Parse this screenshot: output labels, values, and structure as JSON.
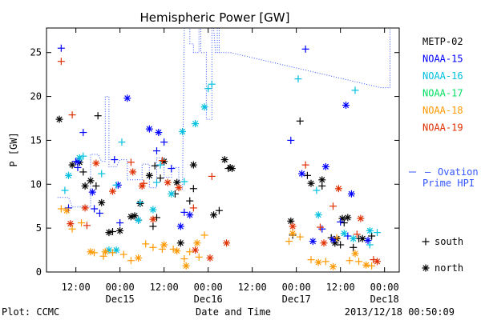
{
  "chart_data": {
    "type": "scatter",
    "title": "Hemispheric Power [GW]",
    "xlabel": "Date and Time",
    "ylabel": "P [GW]",
    "footer_left": "Plot: CCMC",
    "footer_right": "2013/12/18 00:50:09",
    "xlim": [
      "2013-12-14 04:00",
      "2013-12-18 04:00"
    ],
    "ylim": [
      0,
      27.8
    ],
    "yticks": [
      0,
      5,
      10,
      15,
      20,
      25
    ],
    "xticks": [
      {
        "t": "2013-12-14 12:00",
        "time": "12:00",
        "date": ""
      },
      {
        "t": "2013-12-15 00:00",
        "time": "00:00",
        "date": "Dec15"
      },
      {
        "t": "2013-12-15 12:00",
        "time": "12:00",
        "date": ""
      },
      {
        "t": "2013-12-16 00:00",
        "time": "00:00",
        "date": "Dec16"
      },
      {
        "t": "2013-12-16 12:00",
        "time": "12:00",
        "date": ""
      },
      {
        "t": "2013-12-17 00:00",
        "time": "00:00",
        "date": "Dec17"
      },
      {
        "t": "2013-12-17 12:00",
        "time": "12:00",
        "date": ""
      },
      {
        "t": "2013-12-18 00:00",
        "time": "00:00",
        "date": "Dec18"
      }
    ],
    "legend_position": "right",
    "marker_legend": [
      {
        "marker": "plus",
        "label": "south"
      },
      {
        "marker": "star",
        "label": "north"
      }
    ],
    "series": [
      {
        "name": "METP-02",
        "color": "#000000",
        "plus": [
          [
            "2013-12-14 18:00",
            17.8
          ],
          [
            "2013-12-14 14:00",
            11.4
          ],
          [
            "2013-12-14 17:30",
            9.8
          ],
          [
            "2013-12-14 22:00",
            4.6
          ],
          [
            "2013-12-15 05:00",
            5.9
          ],
          [
            "2013-12-15 09:00",
            5.2
          ],
          [
            "2013-12-15 09:30",
            12.1
          ],
          [
            "2013-12-15 10:00",
            6.2
          ],
          [
            "2013-12-15 15:00",
            8.9
          ],
          [
            "2013-12-15 19:00",
            8.1
          ],
          [
            "2013-12-15 20:00",
            9.5
          ],
          [
            "2013-12-16 03:00",
            7.0
          ],
          [
            "2013-12-16 05:30",
            11.8
          ],
          [
            "2013-12-15 11:00",
            10.7
          ],
          [
            "2013-12-16 23:00",
            4.2
          ],
          [
            "2013-12-17 01:00",
            17.2
          ],
          [
            "2013-12-17 03:00",
            11.0
          ],
          [
            "2013-12-17 07:00",
            9.8
          ],
          [
            "2013-12-17 09:30",
            3.9
          ],
          [
            "2013-12-17 12:00",
            3.1
          ],
          [
            "2013-12-17 13:00",
            5.6
          ],
          [
            "2013-12-17 15:30",
            2.8
          ],
          [
            "2013-12-17 17:00",
            3.8
          ],
          [
            "2013-12-17 20:30",
            4.1
          ]
        ],
        "star": [
          [
            "2013-12-14 07:30",
            17.4
          ],
          [
            "2013-12-14 11:00",
            12.2
          ],
          [
            "2013-12-14 13:00",
            12.5
          ],
          [
            "2013-12-14 14:30",
            9.8
          ],
          [
            "2013-12-14 16:00",
            10.4
          ],
          [
            "2013-12-14 19:00",
            7.9
          ],
          [
            "2013-12-14 21:00",
            4.5
          ],
          [
            "2013-12-15 00:00",
            4.7
          ],
          [
            "2013-12-15 03:00",
            6.3
          ],
          [
            "2013-12-15 04:00",
            6.4
          ],
          [
            "2013-12-15 05:30",
            7.8
          ],
          [
            "2013-12-15 08:00",
            11.0
          ],
          [
            "2013-12-15 12:00",
            12.6
          ],
          [
            "2013-12-15 15:30",
            10.2
          ],
          [
            "2013-12-15 16:30",
            3.3
          ],
          [
            "2013-12-15 20:00",
            12.2
          ],
          [
            "2013-12-16 01:30",
            6.5
          ],
          [
            "2013-12-16 04:30",
            12.8
          ],
          [
            "2013-12-16 06:00",
            11.9
          ],
          [
            "2013-12-16 06:30",
            11.8
          ],
          [
            "2013-12-16 22:30",
            5.8
          ],
          [
            "2013-12-17 04:00",
            10.1
          ],
          [
            "2013-12-17 07:00",
            10.5
          ],
          [
            "2013-12-17 10:30",
            3.3
          ],
          [
            "2013-12-17 11:00",
            3.8
          ],
          [
            "2013-12-17 12:30",
            6.1
          ],
          [
            "2013-12-17 14:00",
            6.2
          ],
          [
            "2013-12-17 18:00",
            3.8
          ]
        ]
      },
      {
        "name": "NOAA-15",
        "color": "#0000ff",
        "plus": [
          [
            "2013-12-14 08:00",
            25.5
          ],
          [
            "2013-12-14 10:00",
            7.3
          ],
          [
            "2013-12-14 12:00",
            12.6
          ],
          [
            "2013-12-14 12:30",
            11.9
          ],
          [
            "2013-12-14 14:00",
            15.9
          ],
          [
            "2013-12-14 17:00",
            7.2
          ],
          [
            "2013-12-14 18:30",
            6.7
          ],
          [
            "2013-12-14 22:30",
            12.8
          ],
          [
            "2013-12-15 00:00",
            5.6
          ],
          [
            "2013-12-15 10:00",
            13.8
          ],
          [
            "2013-12-15 12:00",
            14.8
          ],
          [
            "2013-12-15 14:00",
            11.8
          ],
          [
            "2013-12-15 17:30",
            6.8
          ],
          [
            "2013-12-16 22:30",
            15.0
          ],
          [
            "2013-12-17 02:30",
            25.4
          ],
          [
            "2013-12-17 07:00",
            4.9
          ],
          [
            "2013-12-17 12:00",
            5.7
          ],
          [
            "2013-12-17 14:00",
            4.1
          ]
        ],
        "star": [
          [
            "2013-12-14 12:30",
            12.6
          ],
          [
            "2013-12-14 16:30",
            9.1
          ],
          [
            "2013-12-14 23:30",
            9.9
          ],
          [
            "2013-12-15 02:00",
            19.8
          ],
          [
            "2013-12-15 08:00",
            16.3
          ],
          [
            "2013-12-15 10:30",
            15.9
          ],
          [
            "2013-12-15 16:30",
            5.2
          ],
          [
            "2013-12-15 19:00",
            6.5
          ],
          [
            "2013-12-17 01:30",
            11.2
          ],
          [
            "2013-12-17 04:30",
            3.5
          ],
          [
            "2013-12-17 08:00",
            12.0
          ],
          [
            "2013-12-17 10:00",
            3.7
          ],
          [
            "2013-12-17 13:30",
            19.0
          ],
          [
            "2013-12-17 15:00",
            8.9
          ],
          [
            "2013-12-17 19:30",
            3.6
          ]
        ]
      },
      {
        "name": "NOAA-16",
        "color": "#00c0e0",
        "plus": [
          [
            "2013-12-14 09:00",
            9.3
          ],
          [
            "2013-12-14 14:00",
            13.2
          ],
          [
            "2013-12-14 19:00",
            11.2
          ],
          [
            "2013-12-14 23:00",
            9.9
          ],
          [
            "2013-12-15 00:30",
            14.8
          ],
          [
            "2013-12-15 05:30",
            7.9
          ],
          [
            "2013-12-15 10:00",
            10.2
          ],
          [
            "2013-12-15 11:00",
            12.2
          ],
          [
            "2013-12-15 17:30",
            10.3
          ],
          [
            "2013-12-16 01:00",
            21.4
          ],
          [
            "2013-12-16 00:00",
            20.9
          ],
          [
            "2013-12-17 00:30",
            22.0
          ],
          [
            "2013-12-17 05:30",
            9.3
          ],
          [
            "2013-12-17 16:00",
            20.7
          ],
          [
            "2013-12-17 20:00",
            3.1
          ],
          [
            "2013-12-17 22:00",
            4.5
          ]
        ],
        "star": [
          [
            "2013-12-14 10:00",
            11.0
          ],
          [
            "2013-12-14 13:00",
            13.0
          ],
          [
            "2013-12-14 21:00",
            2.5
          ],
          [
            "2013-12-14 23:00",
            2.5
          ],
          [
            "2013-12-15 05:00",
            5.9
          ],
          [
            "2013-12-15 09:00",
            7.1
          ],
          [
            "2013-12-15 14:00",
            8.9
          ],
          [
            "2013-12-15 17:00",
            16.0
          ],
          [
            "2013-12-15 20:30",
            16.9
          ],
          [
            "2013-12-15 23:00",
            18.8
          ],
          [
            "2013-12-17 06:00",
            6.5
          ],
          [
            "2013-12-17 13:00",
            4.4
          ],
          [
            "2013-12-17 15:30",
            3.8
          ],
          [
            "2013-12-17 20:00",
            4.7
          ]
        ]
      },
      {
        "name": "NOAA-17",
        "color": "#00e060",
        "plus": [],
        "star": []
      },
      {
        "name": "NOAA-18",
        "color": "#ff9900",
        "plus": [
          [
            "2013-12-14 08:00",
            7.2
          ],
          [
            "2013-12-14 11:00",
            4.9
          ],
          [
            "2013-12-14 13:30",
            5.6
          ],
          [
            "2013-12-14 17:00",
            2.2
          ],
          [
            "2013-12-14 19:30",
            1.8
          ],
          [
            "2013-12-14 22:00",
            2.2
          ],
          [
            "2013-12-15 01:00",
            2.0
          ],
          [
            "2013-12-15 03:00",
            1.3
          ],
          [
            "2013-12-15 07:00",
            3.2
          ],
          [
            "2013-12-15 09:00",
            2.8
          ],
          [
            "2013-12-15 11:30",
            2.6
          ],
          [
            "2013-12-15 14:30",
            2.6
          ],
          [
            "2013-12-15 17:30",
            1.5
          ],
          [
            "2013-12-15 19:00",
            2.3
          ],
          [
            "2013-12-15 21:30",
            1.7
          ],
          [
            "2013-12-15 23:00",
            4.2
          ],
          [
            "2013-12-16 22:00",
            3.5
          ],
          [
            "2013-12-17 01:00",
            4.0
          ],
          [
            "2013-12-17 04:00",
            1.4
          ],
          [
            "2013-12-17 08:00",
            1.2
          ],
          [
            "2013-12-17 11:00",
            3.9
          ],
          [
            "2013-12-17 14:30",
            1.3
          ],
          [
            "2013-12-17 17:00",
            1.2
          ],
          [
            "2013-12-17 20:30",
            0.7
          ]
        ],
        "star": [
          [
            "2013-12-14 09:30",
            7.0
          ],
          [
            "2013-12-14 16:00",
            2.3
          ],
          [
            "2013-12-14 20:00",
            2.3
          ],
          [
            "2013-12-15 05:00",
            1.6
          ],
          [
            "2013-12-15 12:00",
            3.1
          ],
          [
            "2013-12-15 15:30",
            2.4
          ],
          [
            "2013-12-15 18:00",
            0.7
          ],
          [
            "2013-12-15 21:00",
            3.3
          ],
          [
            "2013-12-16 23:00",
            4.4
          ],
          [
            "2013-12-17 06:00",
            1.1
          ],
          [
            "2013-12-17 10:00",
            0.6
          ],
          [
            "2013-12-17 16:00",
            2.1
          ],
          [
            "2013-12-17 19:00",
            0.8
          ]
        ]
      },
      {
        "name": "NOAA-19",
        "color": "#e03000",
        "plus": [
          [
            "2013-12-14 08:00",
            24.0
          ],
          [
            "2013-12-14 11:00",
            17.9
          ],
          [
            "2013-12-14 15:00",
            5.3
          ],
          [
            "2013-12-15 03:00",
            12.5
          ],
          [
            "2013-12-15 06:30",
            10.1
          ],
          [
            "2013-12-15 11:30",
            12.7
          ],
          [
            "2013-12-15 20:00",
            7.3
          ],
          [
            "2013-12-16 01:00",
            10.9
          ],
          [
            "2013-12-17 02:30",
            12.2
          ],
          [
            "2013-12-17 06:30",
            5.1
          ],
          [
            "2013-12-17 10:00",
            7.5
          ],
          [
            "2013-12-17 16:30",
            4.3
          ],
          [
            "2013-12-17 21:00",
            1.4
          ]
        ],
        "star": [
          [
            "2013-12-14 10:30",
            5.5
          ],
          [
            "2013-12-14 14:30",
            7.3
          ],
          [
            "2013-12-14 17:30",
            12.4
          ],
          [
            "2013-12-14 22:00",
            9.2
          ],
          [
            "2013-12-15 03:30",
            11.4
          ],
          [
            "2013-12-15 06:00",
            9.8
          ],
          [
            "2013-12-15 09:00",
            6.0
          ],
          [
            "2013-12-15 13:00",
            10.2
          ],
          [
            "2013-12-15 16:00",
            9.6
          ],
          [
            "2013-12-15 20:30",
            2.5
          ],
          [
            "2013-12-16 00:30",
            1.6
          ],
          [
            "2013-12-16 05:00",
            3.3
          ],
          [
            "2013-12-16 23:00",
            5.2
          ],
          [
            "2013-12-17 07:30",
            3.3
          ],
          [
            "2013-12-17 11:30",
            9.5
          ],
          [
            "2013-12-17 17:30",
            6.1
          ],
          [
            "2013-12-17 22:00",
            1.2
          ]
        ]
      }
    ],
    "ovation": {
      "name": "Ovation Prime HPI",
      "color": "#3355ff",
      "style": "dotted step",
      "points": [
        [
          "2013-12-14 07:00",
          8.5
        ],
        [
          "2013-12-14 10:00",
          8.5
        ],
        [
          "2013-12-14 11:00",
          7.4
        ],
        [
          "2013-12-14 16:00",
          7.4
        ],
        [
          "2013-12-14 16:00",
          13.4
        ],
        [
          "2013-12-14 18:00",
          13.4
        ],
        [
          "2013-12-14 19:00",
          12.6
        ],
        [
          "2013-12-14 20:00",
          12.6
        ],
        [
          "2013-12-14 20:00",
          20.0
        ],
        [
          "2013-12-14 21:00",
          20.0
        ],
        [
          "2013-12-14 21:00",
          12.0
        ],
        [
          "2013-12-14 23:00",
          12.0
        ],
        [
          "2013-12-15 00:00",
          12.8
        ],
        [
          "2013-12-15 02:00",
          12.8
        ],
        [
          "2013-12-15 02:00",
          10.5
        ],
        [
          "2013-12-15 06:00",
          10.5
        ],
        [
          "2013-12-15 06:00",
          12.3
        ],
        [
          "2013-12-15 08:00",
          12.3
        ],
        [
          "2013-12-15 08:00",
          9.6
        ],
        [
          "2013-12-15 10:00",
          9.6
        ],
        [
          "2013-12-15 10:00",
          13.0
        ],
        [
          "2013-12-15 12:00",
          13.0
        ],
        [
          "2013-12-15 12:00",
          10.8
        ],
        [
          "2013-12-15 14:00",
          10.8
        ],
        [
          "2013-12-15 14:00",
          11.9
        ],
        [
          "2013-12-15 16:00",
          11.9
        ],
        [
          "2013-12-15 16:00",
          9.4
        ],
        [
          "2013-12-15 17:00",
          9.4
        ],
        [
          "2013-12-15 17:30",
          27.8
        ],
        [
          "2013-12-15 19:00",
          27.8
        ],
        [
          "2013-12-15 19:00",
          26.0
        ],
        [
          "2013-12-15 20:00",
          26.0
        ],
        [
          "2013-12-15 20:00",
          25.0
        ],
        [
          "2013-12-15 21:30",
          25.0
        ],
        [
          "2013-12-15 21:30",
          27.8
        ],
        [
          "2013-12-15 22:00",
          27.8
        ],
        [
          "2013-12-15 22:00",
          25.0
        ],
        [
          "2013-12-15 23:30",
          25.0
        ],
        [
          "2013-12-15 23:30",
          17.4
        ],
        [
          "2013-12-16 01:00",
          17.4
        ],
        [
          "2013-12-16 01:00",
          27.8
        ],
        [
          "2013-12-16 01:30",
          27.8
        ],
        [
          "2013-12-16 02:00",
          25.0
        ],
        [
          "2013-12-16 02:30",
          25.0
        ],
        [
          "2013-12-16 02:30",
          27.8
        ],
        [
          "2013-12-16 03:00",
          27.8
        ],
        [
          "2013-12-16 03:00",
          25.0
        ],
        [
          "2013-12-16 05:00",
          25.0
        ],
        [
          "2013-12-16 06:00",
          25.0
        ],
        [
          "2013-12-17 23:00",
          21.0
        ],
        [
          "2013-12-18 01:30",
          21.0
        ],
        [
          "2013-12-18 01:30",
          27.8
        ]
      ]
    }
  }
}
